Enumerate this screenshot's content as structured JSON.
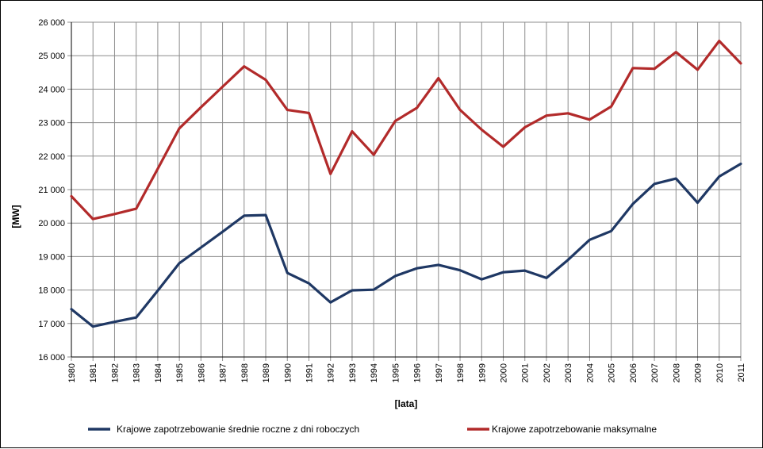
{
  "chart_data": {
    "type": "line",
    "xlabel": "[lata]",
    "ylabel": "[MW]",
    "ylim": [
      16000,
      26000
    ],
    "y_ticks": [
      "16 000",
      "17 000",
      "18 000",
      "19 000",
      "20 000",
      "21 000",
      "22 000",
      "23 000",
      "24 000",
      "25 000",
      "26 000"
    ],
    "grid": true,
    "legend_position": "bottom",
    "categories": [
      "1980",
      "1981",
      "1982",
      "1983",
      "1984",
      "1985",
      "1986",
      "1987",
      "1988",
      "1989",
      "1990",
      "1991",
      "1992",
      "1993",
      "1994",
      "1995",
      "1996",
      "1997",
      "1998",
      "1999",
      "2000",
      "2001",
      "2002",
      "2003",
      "2004",
      "2005",
      "2006",
      "2007",
      "2008",
      "2009",
      "2010",
      "2011"
    ],
    "series": [
      {
        "name": "Krajowe zapotrzebowanie średnie roczne z dni roboczych",
        "color": "#1f3864",
        "values": [
          17430,
          16910,
          17050,
          17180,
          17980,
          18800,
          19270,
          19740,
          20220,
          20240,
          18510,
          18200,
          17630,
          17990,
          18010,
          18420,
          18650,
          18750,
          18590,
          18320,
          18530,
          18580,
          18360,
          18900,
          19500,
          19760,
          20570,
          21170,
          21330,
          20610,
          21390,
          21770
        ]
      },
      {
        "name": "Krajowe zapotrzebowanie maksymalne",
        "color": "#b22a2a",
        "values": [
          20800,
          20120,
          20270,
          20430,
          21620,
          22830,
          23460,
          24070,
          24680,
          24280,
          23380,
          23290,
          21470,
          22740,
          22040,
          23050,
          23440,
          24330,
          23380,
          22790,
          22280,
          22860,
          23210,
          23280,
          23090,
          23480,
          24630,
          24610,
          25110,
          24580,
          25440,
          24770
        ]
      }
    ]
  }
}
